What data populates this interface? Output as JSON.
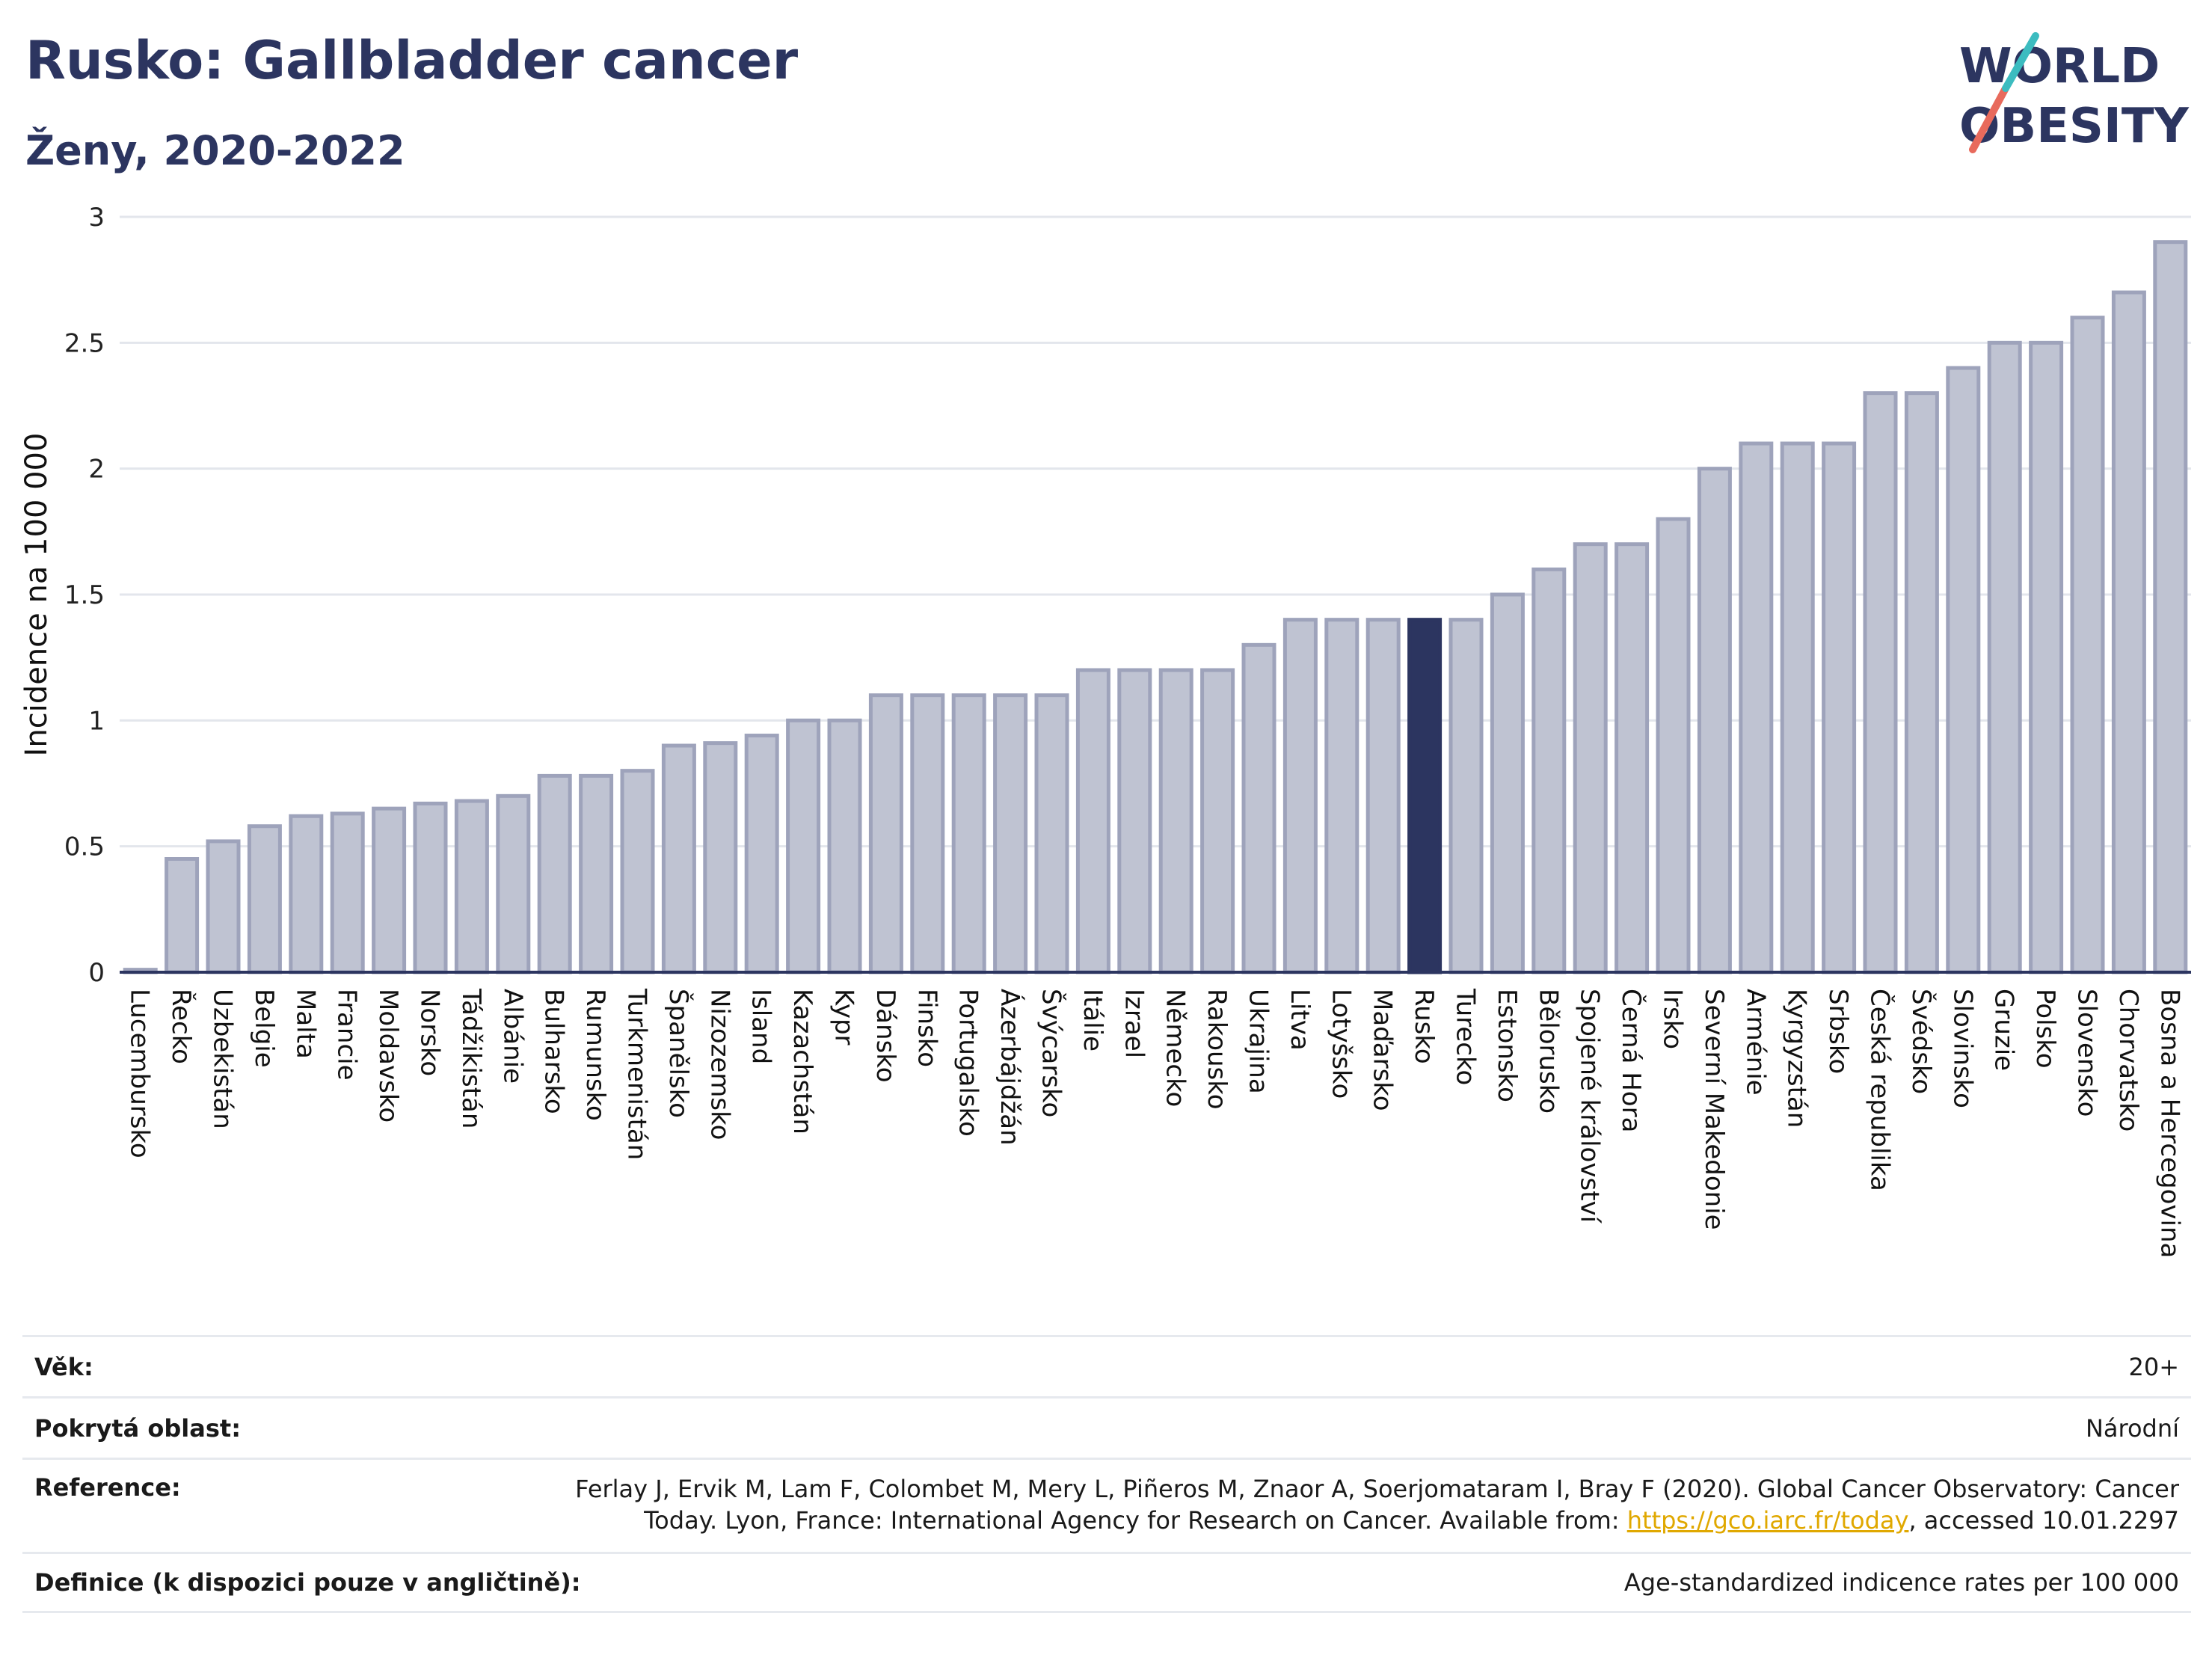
{
  "header": {
    "title": "Rusko: Gallbladder cancer",
    "subtitle": "Ženy, 2020-2022"
  },
  "logo": {
    "line1": "WORLD",
    "line2": "OBESITY",
    "text": "WORLD OBESITY"
  },
  "colors": {
    "bar": "#bfc3d2",
    "bar_stroke": "#9ea3bb",
    "highlight": "#2c3560",
    "title": "#2c3560",
    "link": "#e0a800"
  },
  "chart_data": {
    "type": "bar",
    "ylabel": "Incidence na 100 000",
    "ylim": [
      0,
      3
    ],
    "yticks": [
      0,
      0.5,
      1,
      1.5,
      2,
      2.5,
      3
    ],
    "ytick_labels": [
      "0",
      "0.5",
      "1",
      "1.5",
      "2",
      "2.5",
      "3"
    ],
    "highlight": "Rusko",
    "grid": true,
    "categories": [
      "Lucembursko",
      "Řecko",
      "Uzbekistán",
      "Belgie",
      "Malta",
      "Francie",
      "Moldavsko",
      "Norsko",
      "Tádžikistán",
      "Albánie",
      "Bulharsko",
      "Rumunsko",
      "Turkmenistán",
      "Španělsko",
      "Nizozemsko",
      "Island",
      "Kazachstán",
      "Kypr",
      "Dánsko",
      "Finsko",
      "Portugalsko",
      "Ázerbájdžán",
      "Švýcarsko",
      "Itálie",
      "Izrael",
      "Německo",
      "Rakousko",
      "Ukrajina",
      "Litva",
      "Lotyšsko",
      "Maďarsko",
      "Rusko",
      "Turecko",
      "Estonsko",
      "Bělorusko",
      "Spojené království",
      "Černá Hora",
      "Irsko",
      "Severní Makedonie",
      "Arménie",
      "Kyrgyzstán",
      "Srbsko",
      "Česká republika",
      "Švédsko",
      "Slovinsko",
      "Gruzie",
      "Polsko",
      "Slovensko",
      "Chorvatsko",
      "Bosna a Hercegovina"
    ],
    "values": [
      0.01,
      0.45,
      0.52,
      0.58,
      0.62,
      0.63,
      0.65,
      0.67,
      0.68,
      0.7,
      0.78,
      0.78,
      0.8,
      0.9,
      0.91,
      0.94,
      1.0,
      1.0,
      1.1,
      1.1,
      1.1,
      1.1,
      1.1,
      1.2,
      1.2,
      1.2,
      1.2,
      1.3,
      1.4,
      1.4,
      1.4,
      1.4,
      1.4,
      1.5,
      1.6,
      1.7,
      1.7,
      1.8,
      2.0,
      2.1,
      2.1,
      2.1,
      2.3,
      2.3,
      2.4,
      2.5,
      2.5,
      2.6,
      2.7,
      2.9
    ]
  },
  "info": {
    "age_label": "Věk:",
    "age_value": "20+",
    "area_label": "Pokrytá oblast:",
    "area_value": "Národní",
    "ref_label": "Reference:",
    "ref_line1": "Ferlay J, Ervik M, Lam F, Colombet M, Mery L, Piñeros M, Znaor A, Soerjomataram I, Bray F (2020). Global Cancer Observatory: Cancer",
    "ref_line2_pre": "Today. Lyon, France: International Agency for Research on Cancer. Available from: ",
    "ref_link": "https://gco.iarc.fr/today",
    "ref_line2_post": ", accessed 10.01.2297",
    "def_label": "Definice (k dispozici pouze v angličtině):",
    "def_value": "Age-standardized indicence rates per 100 000"
  }
}
